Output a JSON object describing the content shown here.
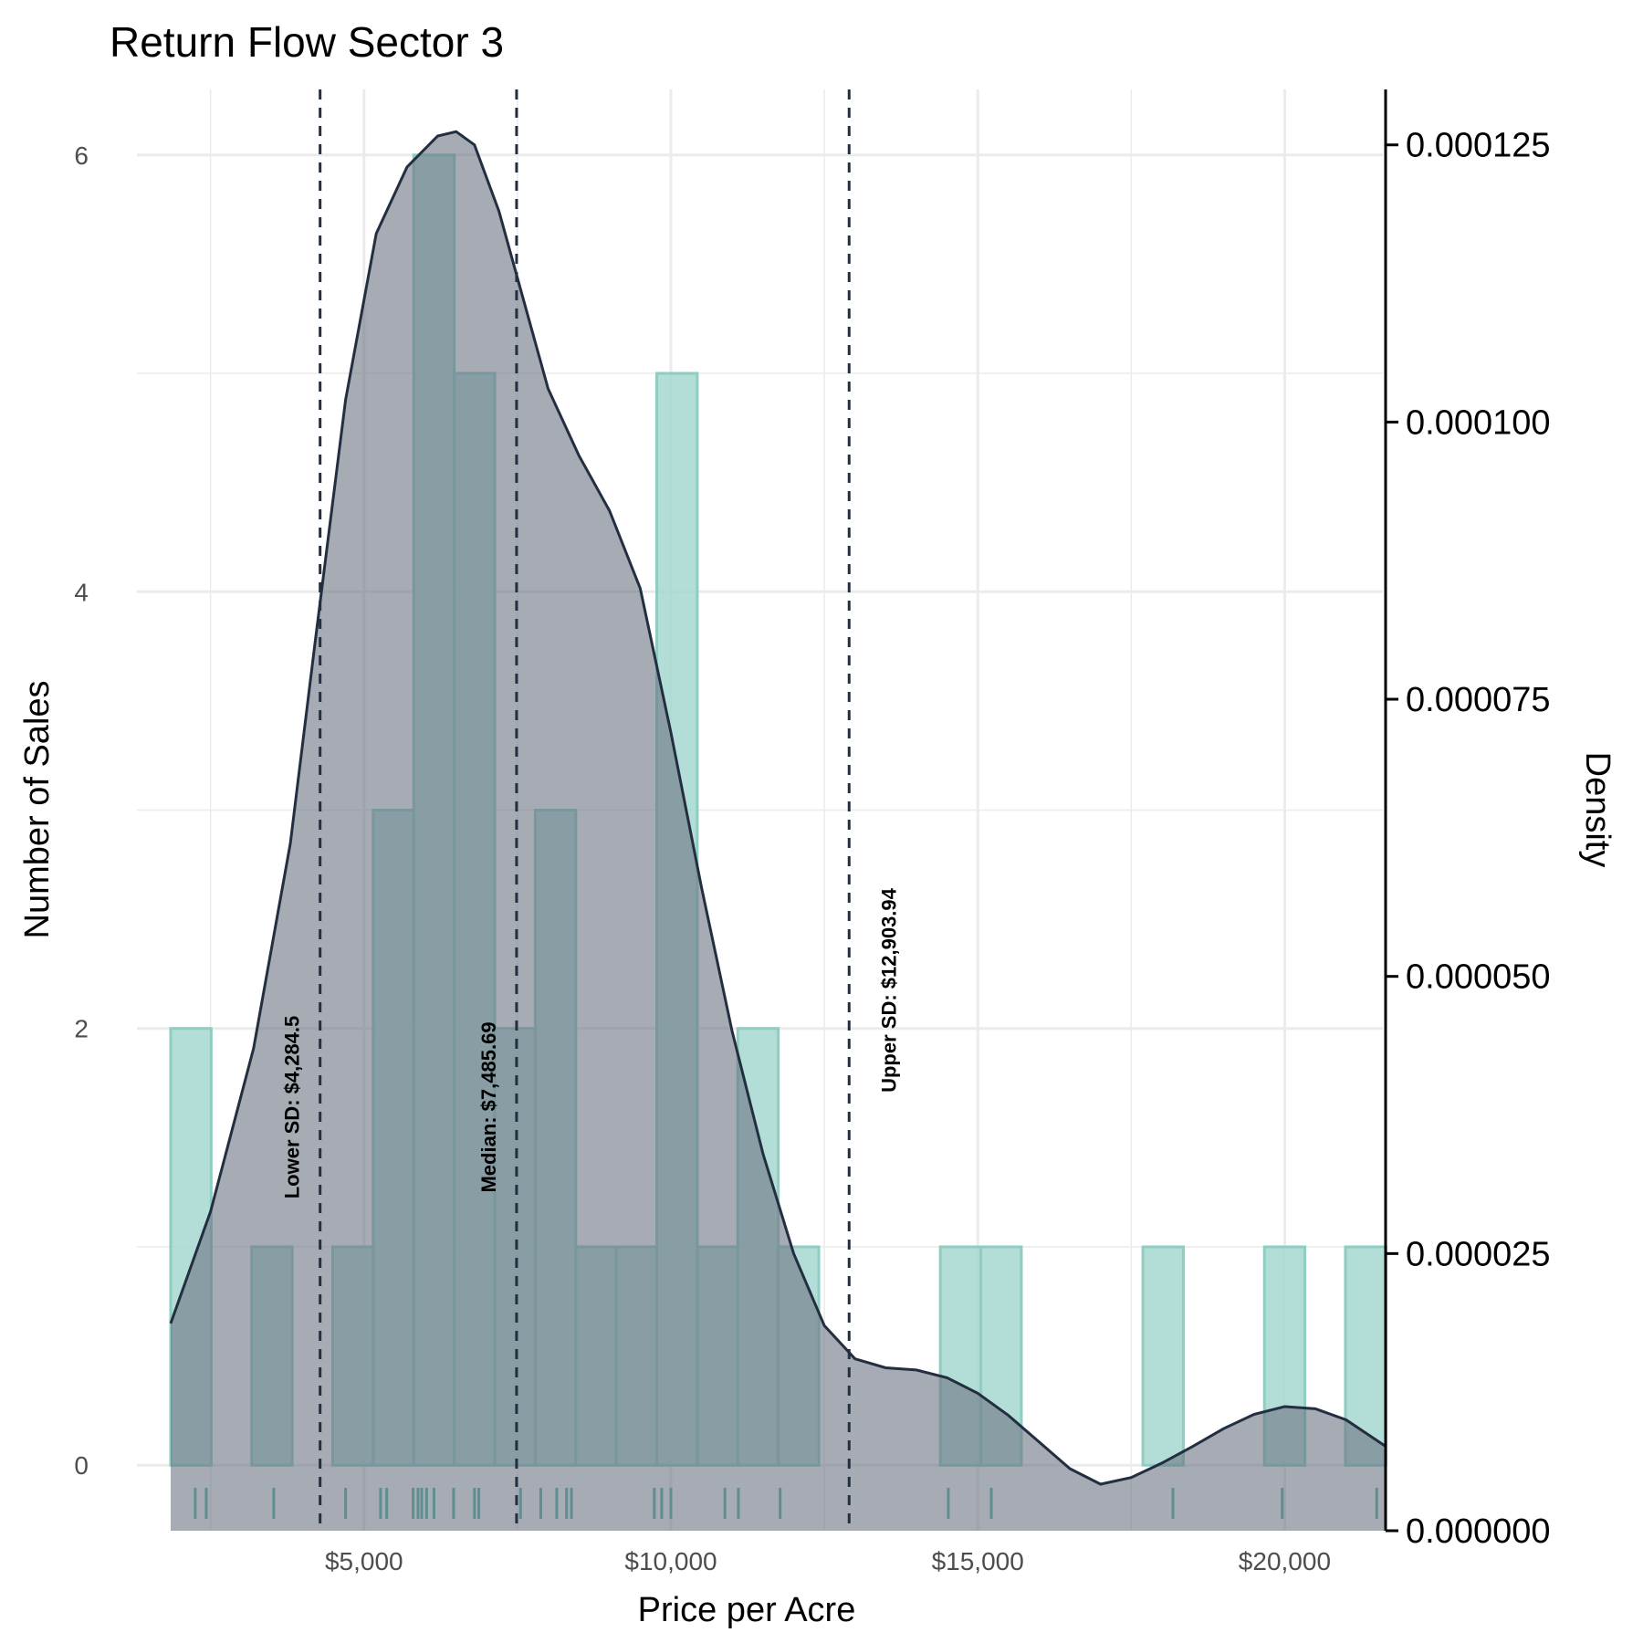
{
  "chart_data": {
    "type": "histogram",
    "title": "Return Flow Sector 3",
    "xlabel": "Price per Acre",
    "ylabel": "Number of Sales",
    "y2label": "Density",
    "xlim": [
      1300,
      21600
    ],
    "ylim": [
      -0.3,
      6.3
    ],
    "y2lim": [
      0,
      0.00013
    ],
    "x_ticks": [
      {
        "value": 5000,
        "label": "$5,000"
      },
      {
        "value": 10000,
        "label": "$10,000"
      },
      {
        "value": 15000,
        "label": "$15,000"
      },
      {
        "value": 20000,
        "label": "$20,000"
      }
    ],
    "y_ticks": [
      {
        "value": 0,
        "label": "0"
      },
      {
        "value": 2,
        "label": "2"
      },
      {
        "value": 4,
        "label": "4"
      },
      {
        "value": 6,
        "label": "6"
      }
    ],
    "y2_ticks": [
      {
        "value": 0,
        "label": "0.000000"
      },
      {
        "value": 2.5e-05,
        "label": "0.000025"
      },
      {
        "value": 5e-05,
        "label": "0.000050"
      },
      {
        "value": 7.5e-05,
        "label": "0.000075"
      },
      {
        "value": 0.0001,
        "label": "0.000100"
      },
      {
        "value": 0.000125,
        "label": "0.000125"
      }
    ],
    "bin_width": 660,
    "bins": [
      {
        "x0": 1850,
        "x1": 2510,
        "count": 2
      },
      {
        "x0": 3170,
        "x1": 3830,
        "count": 1
      },
      {
        "x0": 4490,
        "x1": 5150,
        "count": 1
      },
      {
        "x0": 5150,
        "x1": 5810,
        "count": 3
      },
      {
        "x0": 5810,
        "x1": 6470,
        "count": 6
      },
      {
        "x0": 6470,
        "x1": 7130,
        "count": 5
      },
      {
        "x0": 7130,
        "x1": 7790,
        "count": 2
      },
      {
        "x0": 7790,
        "x1": 8450,
        "count": 3
      },
      {
        "x0": 8450,
        "x1": 9110,
        "count": 1
      },
      {
        "x0": 9110,
        "x1": 9770,
        "count": 1
      },
      {
        "x0": 9770,
        "x1": 10430,
        "count": 5
      },
      {
        "x0": 10430,
        "x1": 11090,
        "count": 1
      },
      {
        "x0": 11090,
        "x1": 11750,
        "count": 2
      },
      {
        "x0": 11750,
        "x1": 12410,
        "count": 1
      },
      {
        "x0": 14390,
        "x1": 15050,
        "count": 1
      },
      {
        "x0": 15050,
        "x1": 15710,
        "count": 1
      },
      {
        "x0": 17690,
        "x1": 18350,
        "count": 1
      },
      {
        "x0": 19670,
        "x1": 20330,
        "count": 1
      },
      {
        "x0": 20990,
        "x1": 21650,
        "count": 1
      }
    ],
    "density": {
      "x": [
        1850,
        2500,
        3200,
        3800,
        4200,
        4700,
        5200,
        5700,
        6200,
        6500,
        6800,
        7200,
        7600,
        8000,
        8500,
        9000,
        9500,
        10000,
        10500,
        11000,
        11500,
        12000,
        12500,
        13000,
        13500,
        14000,
        14500,
        15000,
        15500,
        16000,
        16500,
        17000,
        17500,
        18000,
        18500,
        19000,
        19500,
        20000,
        20500,
        21000,
        21650
      ],
      "y": [
        1.87e-05,
        2.88e-05,
        4.35e-05,
        6.2e-05,
        8e-05,
        0.000102,
        0.000117,
        0.000123,
        0.0001258,
        0.0001262,
        0.000125,
        0.000119,
        0.000111,
        0.000103,
        9.7e-05,
        9.2e-05,
        8.5e-05,
        7.2e-05,
        5.8e-05,
        4.5e-05,
        3.4e-05,
        2.5e-05,
        1.85e-05,
        1.55e-05,
        1.47e-05,
        1.45e-05,
        1.38e-05,
        1.24e-05,
        1.04e-05,
        8e-06,
        5.6e-06,
        4.2e-06,
        4.8e-06,
        6.1e-06,
        7.6e-06,
        9.2e-06,
        1.05e-05,
        1.12e-05,
        1.1e-05,
        1e-05,
        7.6e-06
      ]
    },
    "vlines": [
      {
        "x": 4284.5,
        "label": "Lower SD: $4,284.5"
      },
      {
        "x": 7485.69,
        "label": "Median: $7,485.69"
      },
      {
        "x": 12903.94,
        "label": "Upper SD: $12,903.94"
      }
    ],
    "rug": [
      2250,
      2430,
      3530,
      4700,
      5270,
      5370,
      5800,
      5880,
      5940,
      6020,
      6140,
      6460,
      6800,
      6870,
      7550,
      7880,
      8140,
      8300,
      8380,
      9730,
      9850,
      10000,
      10880,
      11100,
      11780,
      14520,
      15220,
      18180,
      19960,
      21500
    ],
    "grid": true,
    "colors": {
      "bar_fill": "#a6d8d1",
      "bar_edge": "#8fcdc2",
      "density_fill": "#6b7382",
      "density_line": "#232f41",
      "vline": "#232f41",
      "rug": "#5e8f90",
      "grid": "#ebebeb"
    }
  }
}
